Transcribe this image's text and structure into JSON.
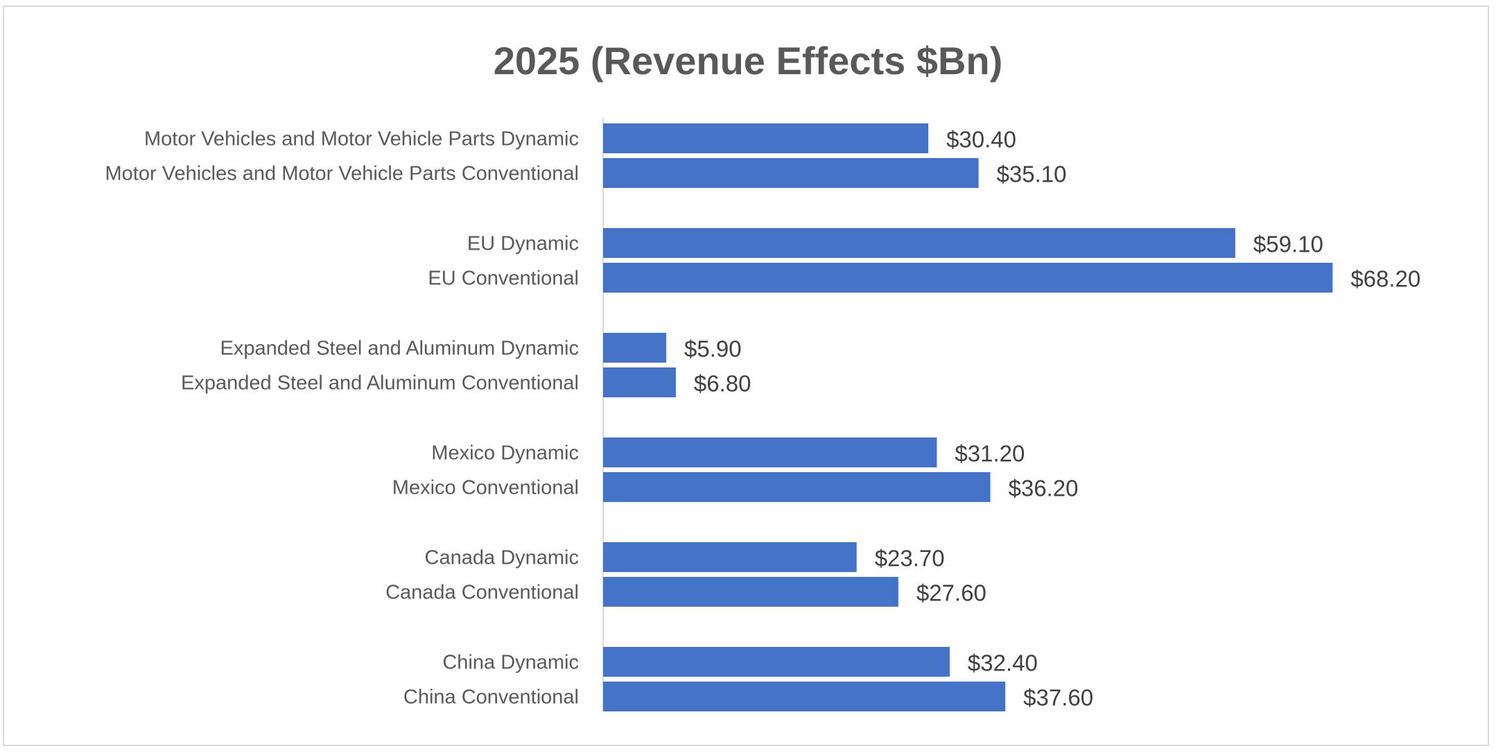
{
  "chart_data": {
    "type": "bar",
    "orientation": "horizontal",
    "title": "2025 (Revenue Effects $Bn)",
    "categories": [
      "Motor Vehicles and Motor Vehicle Parts Dynamic",
      "Motor Vehicles and Motor Vehicle Parts Conventional",
      "EU Dynamic",
      "EU Conventional",
      "Expanded Steel and Aluminum Dynamic",
      "Expanded Steel and Aluminum Conventional",
      "Mexico Dynamic",
      "Mexico Conventional",
      "Canada Dynamic",
      "Canada Conventional",
      "China Dynamic",
      "China Conventional"
    ],
    "values": [
      30.4,
      35.1,
      59.1,
      68.2,
      5.9,
      6.8,
      31.2,
      36.2,
      23.7,
      27.6,
      32.4,
      37.6
    ],
    "data_labels": [
      "$30.40",
      "$35.10",
      "$59.10",
      "$68.20",
      "$5.90",
      "$6.80",
      "$31.20",
      "$36.20",
      "$23.70",
      "$27.60",
      "$32.40",
      "$37.60"
    ],
    "xlim": [
      0,
      70
    ],
    "grid": false,
    "legend": "none",
    "bar_color": "#4472C4",
    "xlabel": "",
    "ylabel": ""
  }
}
